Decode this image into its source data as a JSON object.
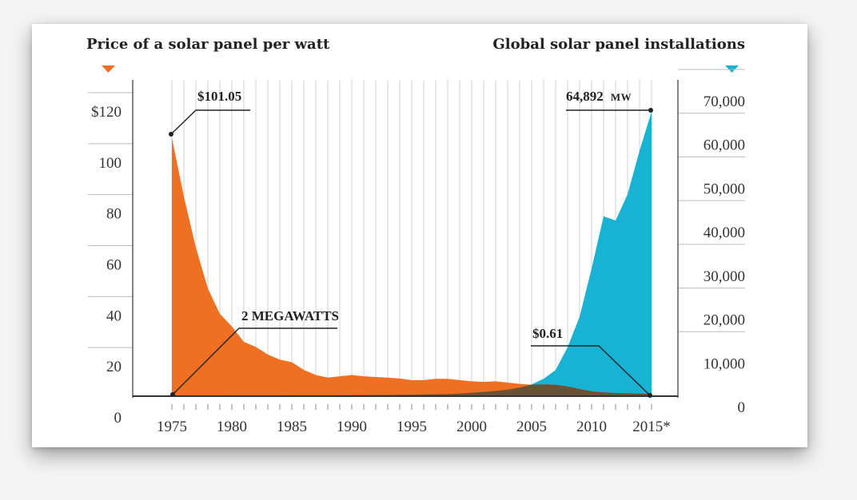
{
  "chart_data": {
    "type": "area",
    "title_left": "Price of a solar panel per watt",
    "title_right": "Global solar panel installations",
    "x": [
      1975,
      1976,
      1977,
      1978,
      1979,
      1980,
      1981,
      1982,
      1983,
      1984,
      1985,
      1986,
      1987,
      1988,
      1989,
      1990,
      1991,
      1992,
      1993,
      1994,
      1995,
      1996,
      1997,
      1998,
      1999,
      2000,
      2001,
      2002,
      2003,
      2004,
      2005,
      2006,
      2007,
      2008,
      2009,
      2010,
      2011,
      2012,
      2013,
      2014,
      2015
    ],
    "x_ticks": [
      "1975",
      "1980",
      "1985",
      "1990",
      "1995",
      "2000",
      "2005",
      "2010",
      "2015*"
    ],
    "x_tick_values": [
      1975,
      1980,
      1985,
      1990,
      1995,
      2000,
      2005,
      2010,
      2015
    ],
    "y_left": {
      "ylim": [
        0,
        120
      ],
      "ticks": [
        0,
        20,
        40,
        60,
        80,
        100,
        120
      ],
      "tick_labels": [
        "0",
        "20",
        "40",
        "60",
        "80",
        "100",
        "$120"
      ]
    },
    "y_right": {
      "ylim": [
        0,
        70000
      ],
      "ticks": [
        0,
        10000,
        20000,
        30000,
        40000,
        50000,
        60000,
        70000
      ],
      "tick_labels": [
        "0",
        "10,000",
        "20,000",
        "30,000",
        "40,000",
        "50,000",
        "60,000",
        "70,000"
      ]
    },
    "grid": "vertical",
    "series": [
      {
        "axis": "left",
        "color": "#f07023",
        "values": [
          101.05,
          78,
          58,
          42,
          32,
          27,
          21,
          19,
          16,
          14,
          13,
          10,
          8,
          7,
          7.5,
          8,
          7.5,
          7.2,
          7,
          6.6,
          6,
          6,
          6.5,
          6.5,
          6,
          5.5,
          5.3,
          5.5,
          5,
          4.5,
          4.2,
          4.3,
          4.1,
          3.5,
          2.5,
          1.6,
          1.2,
          0.9,
          0.8,
          0.7,
          0.61
        ]
      },
      {
        "axis": "right",
        "color": "#18b2d4",
        "values": [
          2,
          3,
          5,
          6,
          8,
          10,
          12,
          14,
          18,
          22,
          30,
          35,
          40,
          50,
          60,
          70,
          80,
          90,
          100,
          120,
          150,
          200,
          250,
          300,
          400,
          600,
          800,
          1000,
          1300,
          1800,
          2500,
          3800,
          5800,
          11000,
          18000,
          29000,
          41000,
          40000,
          46000,
          56000,
          64892
        ]
      }
    ],
    "annotations": {
      "start_price": "$101.05",
      "start_install": "2 MEGAWATTS",
      "end_price": "$0.61",
      "end_install": "64,892",
      "end_install_unit": "MW"
    },
    "colors": {
      "price": "#f07023",
      "installations": "#18b2d4",
      "overlap": "#6b5236"
    }
  }
}
